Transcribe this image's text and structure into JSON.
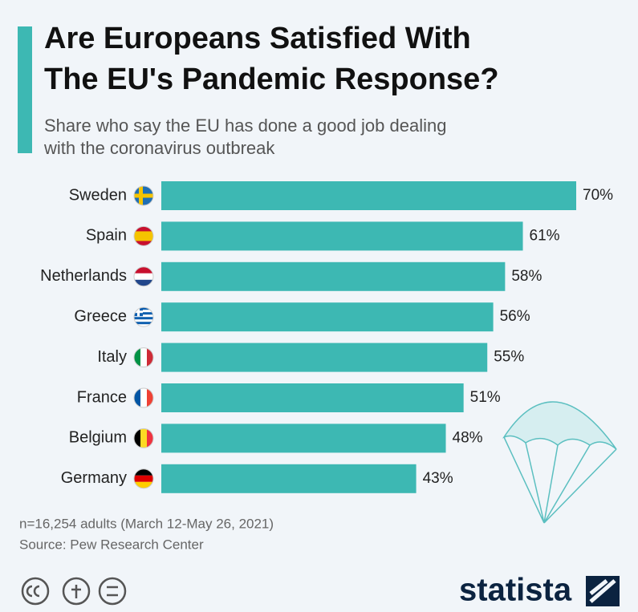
{
  "chart_data": {
    "type": "bar",
    "orientation": "horizontal",
    "title": [
      "Are Europeans Satisfied With",
      "The EU's Pandemic Response?"
    ],
    "subtitle": [
      "Share who say the EU has done a good job dealing",
      "with the coronavirus outbreak"
    ],
    "categories": [
      "Sweden",
      "Spain",
      "Netherlands",
      "Greece",
      "Italy",
      "France",
      "Belgium",
      "Germany"
    ],
    "values": [
      70,
      61,
      58,
      56,
      55,
      51,
      48,
      43
    ],
    "value_labels": [
      "70%",
      "61%",
      "58%",
      "56%",
      "55%",
      "51%",
      "48%",
      "43%"
    ],
    "color": "#3db8b3",
    "xlim": [
      0,
      70
    ],
    "note": "n=16,254 adults (March 12-May 26, 2021)",
    "source": "Source: Pew Research Center",
    "brand": "statista"
  }
}
